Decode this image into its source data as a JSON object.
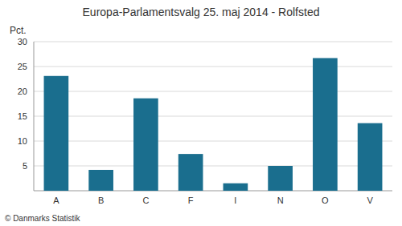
{
  "chart_data": {
    "type": "bar",
    "title": "Europa-Parlamentsvalg 25. maj 2014 - Rolfsted",
    "ylabel": "Pct.",
    "annotations": [
      "© Danmarks Statistik"
    ],
    "categories": [
      "A",
      "B",
      "C",
      "F",
      "I",
      "N",
      "O",
      "V"
    ],
    "values": [
      23.1,
      4.2,
      18.6,
      7.4,
      1.5,
      5.0,
      26.7,
      13.6
    ],
    "color": "#1a6e8e",
    "ylim": [
      0,
      30
    ],
    "yticks": [
      5,
      10,
      15,
      20,
      25,
      30
    ],
    "grid": true
  }
}
